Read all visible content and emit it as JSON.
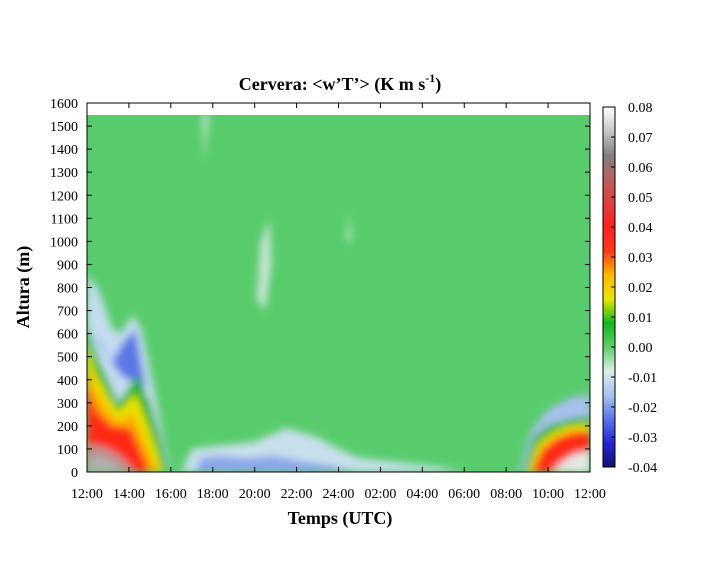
{
  "chart_data": {
    "type": "heatmap",
    "title_main": "Cervera: <w’T’> (K m s",
    "title_sup": "-1",
    "title_end": ")",
    "xlabel": "Temps (UTC)",
    "ylabel": "Altura (m)",
    "x_ticks": [
      "12:00",
      "14:00",
      "16:00",
      "18:00",
      "20:00",
      "22:00",
      "24:00",
      "02:00",
      "04:00",
      "06:00",
      "08:00",
      "10:00",
      "12:00"
    ],
    "y_ticks": [
      0,
      100,
      200,
      300,
      400,
      500,
      600,
      700,
      800,
      900,
      1000,
      1100,
      1200,
      1300,
      1400,
      1500,
      1600
    ],
    "ylim": [
      0,
      1600
    ],
    "data_top": 1550,
    "x_hours_range": [
      0,
      24
    ],
    "colorbar": {
      "ticks": [
        "0.08",
        "0.07",
        "0.06",
        "0.05",
        "0.04",
        "0.03",
        "0.02",
        "0.01",
        "0.00",
        "-0.01",
        "-0.02",
        "-0.03",
        "-0.04"
      ],
      "range": [
        -0.04,
        0.08
      ],
      "palette": [
        "#12126e",
        "#2424d8",
        "#5c74ea",
        "#a9c4f0",
        "#dcece4",
        "#5cd06c",
        "#12b81c",
        "#e8e800",
        "#ffb800",
        "#ff3818",
        "#ff2020",
        "#de4040",
        "#b86060",
        "#808080",
        "#c8c8c8",
        "#ffffff"
      ]
    },
    "grid": false,
    "legend": "right colorbar"
  }
}
